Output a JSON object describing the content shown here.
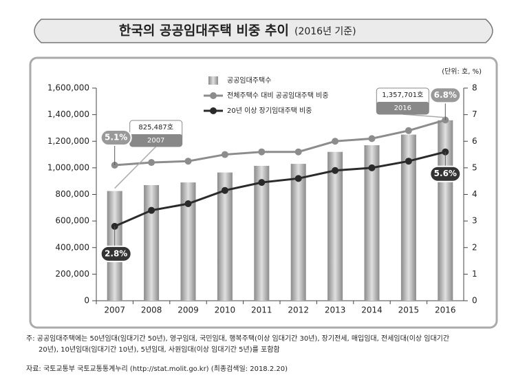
{
  "chart_data": {
    "type": "bar-line",
    "title": "한국의 공공임대주택 비중 추이",
    "subtitle": "(2016년 기준)",
    "unit": "(단위: 호, %)",
    "categories": [
      "2007",
      "2008",
      "2009",
      "2010",
      "2011",
      "2012",
      "2013",
      "2014",
      "2015",
      "2016"
    ],
    "series": [
      {
        "name": "공공임대주택수",
        "type": "bar",
        "color": "#b4b4b4",
        "axis": "y",
        "values": [
          825487,
          870000,
          890000,
          965000,
          1015000,
          1030000,
          1120000,
          1170000,
          1250000,
          1357701
        ],
        "value_labels": [
          "825,487호",
          null,
          null,
          null,
          null,
          null,
          null,
          null,
          null,
          "1,357,701호"
        ]
      },
      {
        "name": "전체주택수 대비 공공임대주택 비중",
        "type": "line",
        "color": "#8c8c8c",
        "axis": "y2",
        "values": [
          5.1,
          5.2,
          5.25,
          5.5,
          5.6,
          5.6,
          6.0,
          6.1,
          6.4,
          6.8
        ],
        "value_labels": [
          "5.1%",
          null,
          null,
          null,
          null,
          null,
          null,
          null,
          null,
          "6.8%"
        ]
      },
      {
        "name": "20년 이상 장기임대주택 비중",
        "type": "line",
        "color": "#2a2a2a",
        "axis": "y2",
        "values": [
          2.8,
          3.4,
          3.65,
          4.15,
          4.45,
          4.6,
          4.9,
          5.0,
          5.25,
          5.6
        ],
        "value_labels": [
          "2.8%",
          null,
          null,
          null,
          null,
          null,
          null,
          null,
          null,
          "5.6%"
        ]
      }
    ],
    "ylim": [
      0,
      1600000
    ],
    "yticks": [
      0,
      {
        "value": 200000,
        "label": "200,000"
      },
      {
        "value": 400000,
        "label": "400,000"
      },
      {
        "value": 600000,
        "label": "600,000"
      },
      {
        "value": 800000,
        "label": "800,000"
      },
      {
        "value": 1000000,
        "label": "1,000,000"
      },
      {
        "value": 1200000,
        "label": "1,200,000"
      },
      {
        "value": 1400000,
        "label": "1,400,000"
      },
      {
        "value": 1600000,
        "label": "1,600,000"
      }
    ],
    "y2lim": [
      0,
      8
    ],
    "y2ticks": [
      0,
      1,
      2,
      3,
      4,
      5,
      6,
      7,
      8
    ],
    "legend": "top",
    "footnote": [
      "주: 공공임대주택에는 50년임대(임대기간 50년), 영구임대, 국민임대, 행복주택(이상 임대기간 30년), 장기전세, 매입임대, 전세임대(이상 임대기간",
      "20년), 10년임대(임대기간 10년), 5년임대, 사원임대(이상 임대기간 5년)를 포함함"
    ],
    "source": "자료: 국토교통부 국토교통통계누리 (http://stat.molit.go.kr) (최종검색일: 2018.2.20)"
  }
}
